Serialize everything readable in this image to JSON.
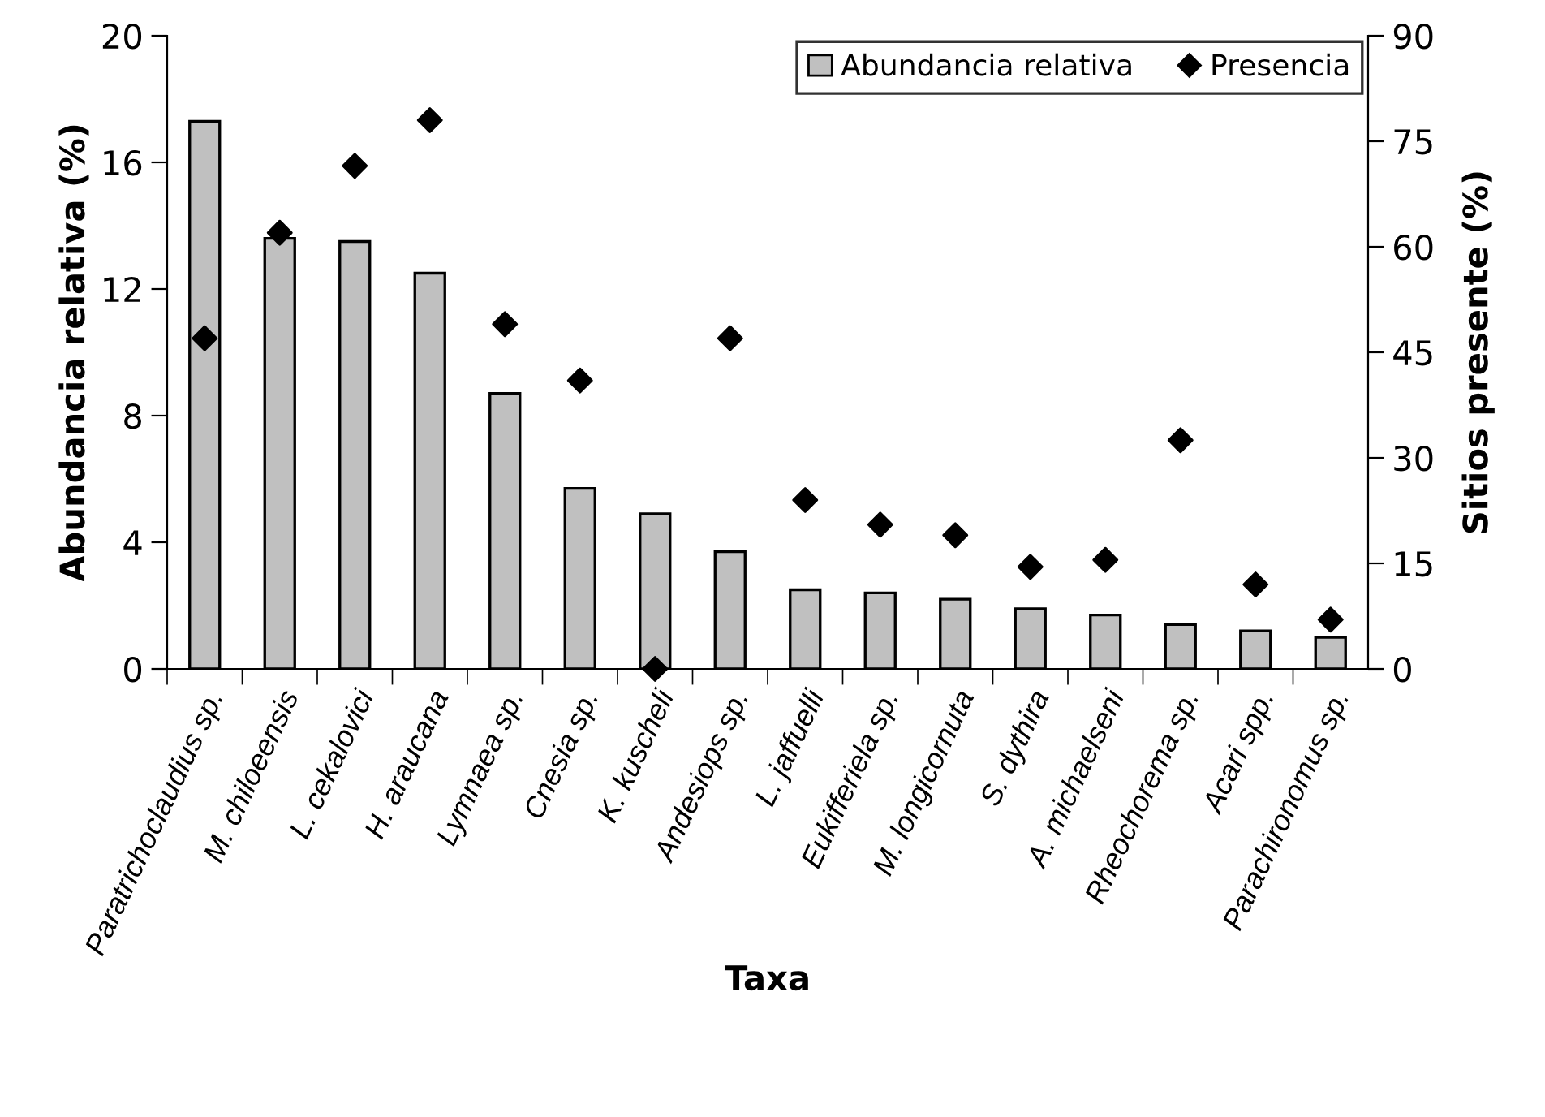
{
  "chart_data": {
    "type": "bar",
    "xlabel": "Taxa",
    "ylabel": "Abundancia relativa (%)",
    "y2label": "Sitios presente (%)",
    "categories": [
      "Paratrichoclaudius sp.",
      "M. chiloeensis",
      "L. cekalovici",
      "H. araucana",
      "Lymnaea sp.",
      "Cnesia sp.",
      "K. kuscheli",
      "Andesiops sp.",
      "L. jaffuelli",
      "Eukifferiela sp.",
      "M. longicornuta",
      "S. dythira",
      "A. michaelseni",
      "Rheochorema sp.",
      "Acari spp.",
      "Parachironomus sp."
    ],
    "series": [
      {
        "name": "Abundancia relativa",
        "color": "#c0c0c0",
        "values": [
          17.3,
          13.6,
          13.5,
          12.5,
          8.7,
          5.7,
          4.9,
          3.7,
          2.5,
          2.4,
          2.2,
          1.9,
          1.7,
          1.4,
          1.2,
          1.0
        ]
      },
      {
        "name": "Presencia",
        "type": "scatter",
        "axis": "y2",
        "color": "#000000",
        "marker": "diamond",
        "values": [
          47,
          62,
          71.5,
          78,
          49,
          41,
          0,
          47,
          24,
          20.5,
          19,
          14.5,
          15.5,
          32.5,
          12,
          7
        ]
      }
    ],
    "ylim": [
      0,
      20
    ],
    "yticks": [
      0,
      4,
      8,
      12,
      16,
      20
    ],
    "y2lim": [
      0,
      90
    ],
    "y2ticks": [
      0,
      15,
      30,
      45,
      60,
      75,
      90
    ],
    "grid": false,
    "legend": "top right"
  }
}
